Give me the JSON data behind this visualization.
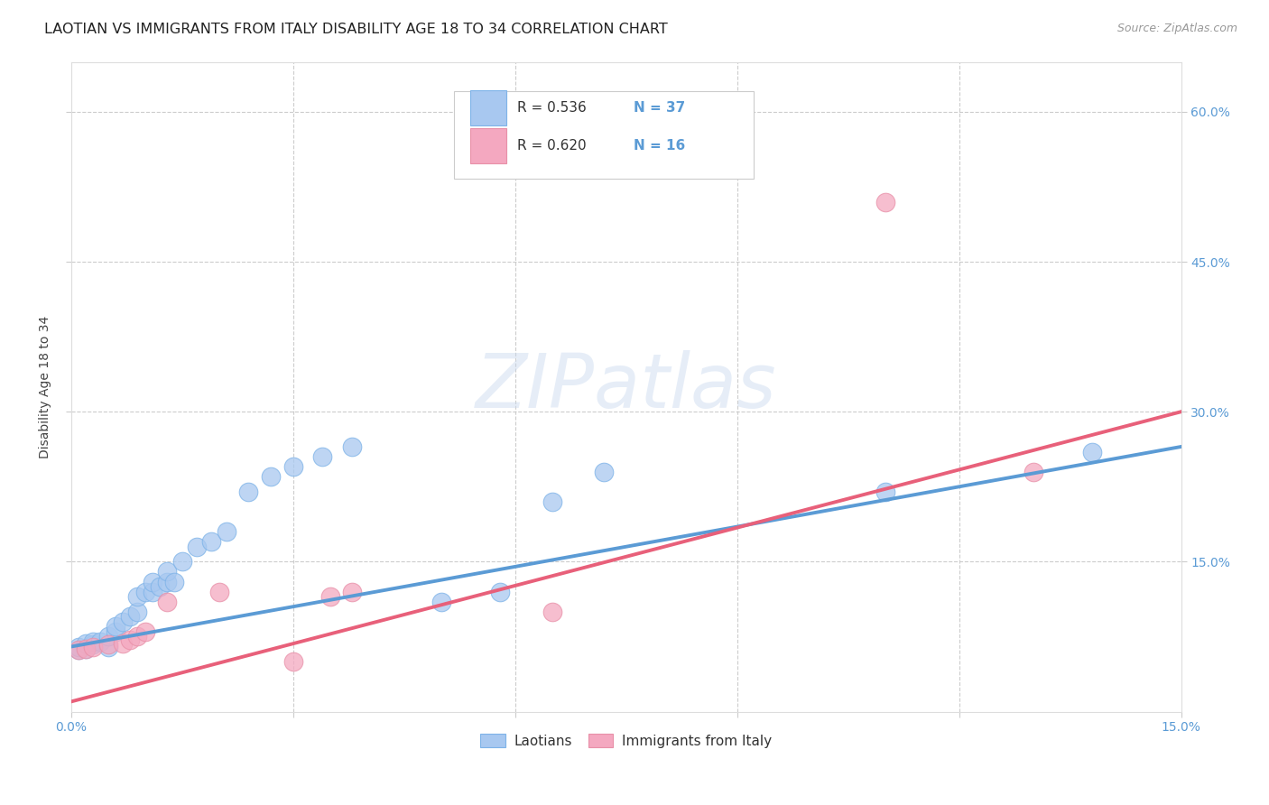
{
  "title": "LAOTIAN VS IMMIGRANTS FROM ITALY DISABILITY AGE 18 TO 34 CORRELATION CHART",
  "source": "Source: ZipAtlas.com",
  "ylabel": "Disability Age 18 to 34",
  "xlim": [
    0.0,
    0.15
  ],
  "ylim": [
    0.0,
    0.65
  ],
  "background_color": "#ffffff",
  "blue_color": "#a8c8f0",
  "pink_color": "#f4a8c0",
  "blue_line_color": "#5b9bd5",
  "pink_line_color": "#e8607a",
  "blue_marker_edge": "#7eb3e8",
  "pink_marker_edge": "#e890a8",
  "R_blue": 0.536,
  "N_blue": 37,
  "R_pink": 0.62,
  "N_pink": 16,
  "tick_color": "#5b9bd5",
  "title_fontsize": 11.5,
  "axis_label_fontsize": 10,
  "tick_fontsize": 10,
  "legend_fontsize": 11,
  "laotian_x": [
    0.001,
    0.001,
    0.002,
    0.002,
    0.003,
    0.003,
    0.004,
    0.005,
    0.005,
    0.006,
    0.006,
    0.007,
    0.008,
    0.009,
    0.009,
    0.01,
    0.011,
    0.011,
    0.012,
    0.013,
    0.013,
    0.014,
    0.015,
    0.017,
    0.019,
    0.021,
    0.024,
    0.027,
    0.03,
    0.034,
    0.038,
    0.05,
    0.058,
    0.065,
    0.072,
    0.11,
    0.138
  ],
  "laotian_y": [
    0.062,
    0.065,
    0.063,
    0.068,
    0.067,
    0.07,
    0.07,
    0.065,
    0.075,
    0.08,
    0.085,
    0.09,
    0.095,
    0.1,
    0.115,
    0.12,
    0.12,
    0.13,
    0.125,
    0.13,
    0.14,
    0.13,
    0.15,
    0.165,
    0.17,
    0.18,
    0.22,
    0.235,
    0.245,
    0.255,
    0.265,
    0.11,
    0.12,
    0.21,
    0.24,
    0.22,
    0.26
  ],
  "italy_x": [
    0.001,
    0.002,
    0.003,
    0.005,
    0.007,
    0.008,
    0.009,
    0.01,
    0.013,
    0.02,
    0.03,
    0.035,
    0.038,
    0.065,
    0.11,
    0.13
  ],
  "italy_y": [
    0.062,
    0.063,
    0.065,
    0.067,
    0.068,
    0.072,
    0.075,
    0.08,
    0.11,
    0.12,
    0.05,
    0.115,
    0.12,
    0.1,
    0.51,
    0.24
  ],
  "blue_line_x": [
    0.0,
    0.15
  ],
  "blue_line_y": [
    0.065,
    0.265
  ],
  "pink_line_x": [
    0.0,
    0.15
  ],
  "pink_line_y": [
    0.01,
    0.3
  ]
}
